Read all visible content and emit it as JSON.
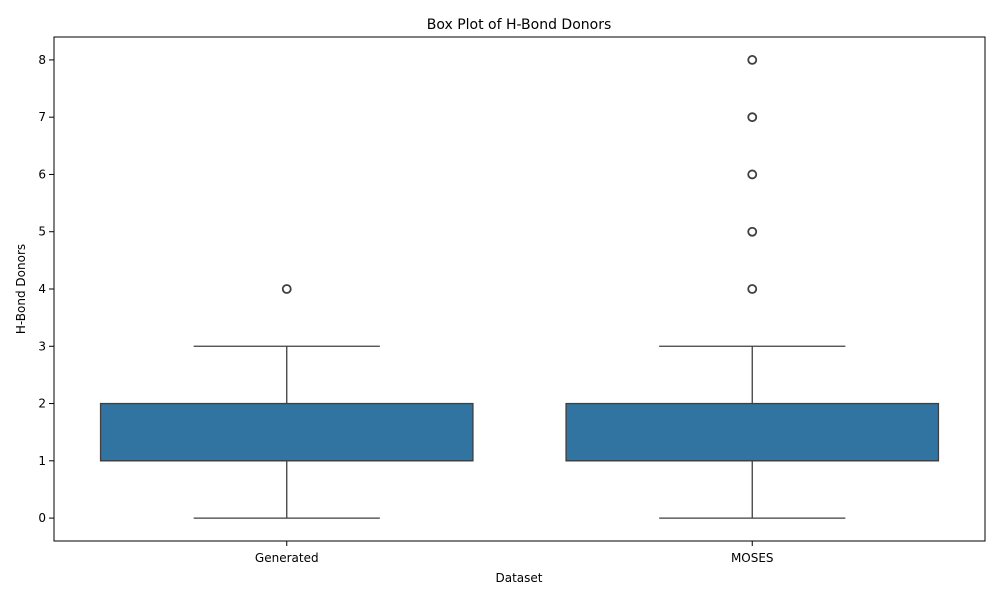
{
  "chart_data": {
    "type": "box",
    "title": "Box Plot of H-Bond Donors",
    "xlabel": "Dataset",
    "ylabel": "H-Bond Donors",
    "categories": [
      "Generated",
      "MOSES"
    ],
    "ylim": [
      -0.4,
      8.4
    ],
    "yticks": [
      0,
      1,
      2,
      3,
      4,
      5,
      6,
      7,
      8
    ],
    "grid": false,
    "box_color": "#3274a1",
    "series": [
      {
        "category": "Generated",
        "whisker_low": 0,
        "q1": 1,
        "median": 1,
        "q3": 2,
        "whisker_high": 3,
        "outliers": [
          4
        ]
      },
      {
        "category": "MOSES",
        "whisker_low": 0,
        "q1": 1,
        "median": 1,
        "q3": 2,
        "whisker_high": 3,
        "outliers": [
          4,
          5,
          6,
          7,
          8
        ]
      }
    ]
  }
}
